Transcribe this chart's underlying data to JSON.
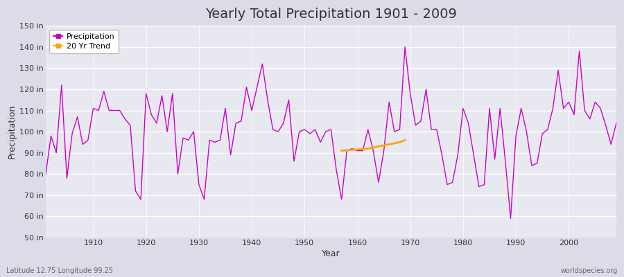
{
  "title": "Yearly Total Precipitation 1901 - 2009",
  "xlabel": "Year",
  "ylabel": "Precipitation",
  "subtitle_left": "Latitude 12.75 Longitude 99.25",
  "subtitle_right": "worldspecies.org",
  "ylim": [
    50,
    150
  ],
  "yticks": [
    50,
    60,
    70,
    80,
    90,
    100,
    110,
    120,
    130,
    140,
    150
  ],
  "ytick_labels": [
    "50 in",
    "60 in",
    "70 in",
    "80 in",
    "90 in",
    "100 in",
    "110 in",
    "120 in",
    "130 in",
    "140 in",
    "150 in"
  ],
  "xticks": [
    1910,
    1920,
    1930,
    1940,
    1950,
    1960,
    1970,
    1980,
    1990,
    2000
  ],
  "fig_bg_color": "#dcdce8",
  "plot_bg_color": "#e8e8f0",
  "grid_color": "#ffffff",
  "line_color": "#cc00cc",
  "trend_color": "#ffa500",
  "legend_entries": [
    "Precipitation",
    "20 Yr Trend"
  ],
  "title_fontsize": 14,
  "label_fontsize": 9,
  "tick_fontsize": 8,
  "annotation_fontsize": 7,
  "precipitation": {
    "1901": 80,
    "1902": 98,
    "1903": 90,
    "1904": 122,
    "1905": 78,
    "1906": 99,
    "1907": 107,
    "1908": 94,
    "1909": 96,
    "1910": 111,
    "1911": 110,
    "1912": 119,
    "1913": 110,
    "1914": 110,
    "1915": 110,
    "1916": 106,
    "1917": 103,
    "1918": 72,
    "1919": 68,
    "1920": 118,
    "1921": 108,
    "1922": 104,
    "1923": 117,
    "1924": 100,
    "1925": 118,
    "1926": 80,
    "1927": 97,
    "1928": 96,
    "1929": 100,
    "1930": 75,
    "1931": 68,
    "1932": 96,
    "1933": 95,
    "1934": 96,
    "1935": 111,
    "1936": 89,
    "1937": 104,
    "1938": 105,
    "1939": 121,
    "1940": 110,
    "1941": 121,
    "1942": 132,
    "1943": 115,
    "1944": 101,
    "1945": 100,
    "1946": 104,
    "1947": 115,
    "1948": 86,
    "1949": 100,
    "1950": 101,
    "1951": 99,
    "1952": 101,
    "1953": 95,
    "1954": 100,
    "1955": 101,
    "1956": 82,
    "1957": 68,
    "1958": 91,
    "1959": 92,
    "1960": 91,
    "1961": 91,
    "1962": 101,
    "1963": 91,
    "1964": 76,
    "1965": 91,
    "1966": 114,
    "1967": 100,
    "1968": 101,
    "1969": 140,
    "1970": 118,
    "1971": 103,
    "1972": 105,
    "1973": 120,
    "1974": 101,
    "1975": 101,
    "1976": 89,
    "1977": 75,
    "1978": 76,
    "1979": 89,
    "1980": 111,
    "1981": 104,
    "1982": 89,
    "1983": 74,
    "1984": 75,
    "1985": 111,
    "1986": 87,
    "1987": 111,
    "1988": 86,
    "1989": 59,
    "1990": 98,
    "1991": 111,
    "1992": 100,
    "1993": 84,
    "1994": 85,
    "1995": 99,
    "1996": 101,
    "1997": 111,
    "1998": 129,
    "1999": 111,
    "2000": 114,
    "2001": 108,
    "2002": 138,
    "2003": 110,
    "2004": 106,
    "2005": 114,
    "2006": 111,
    "2007": 103,
    "2008": 94,
    "2009": 104
  },
  "trend": {
    "1957": 91.0,
    "1958": 91.2,
    "1959": 91.4,
    "1960": 91.6,
    "1961": 91.8,
    "1962": 92.0,
    "1963": 92.5,
    "1964": 93.0,
    "1965": 93.5,
    "1966": 94.0,
    "1967": 94.5,
    "1968": 95.0,
    "1969": 96.0
  }
}
